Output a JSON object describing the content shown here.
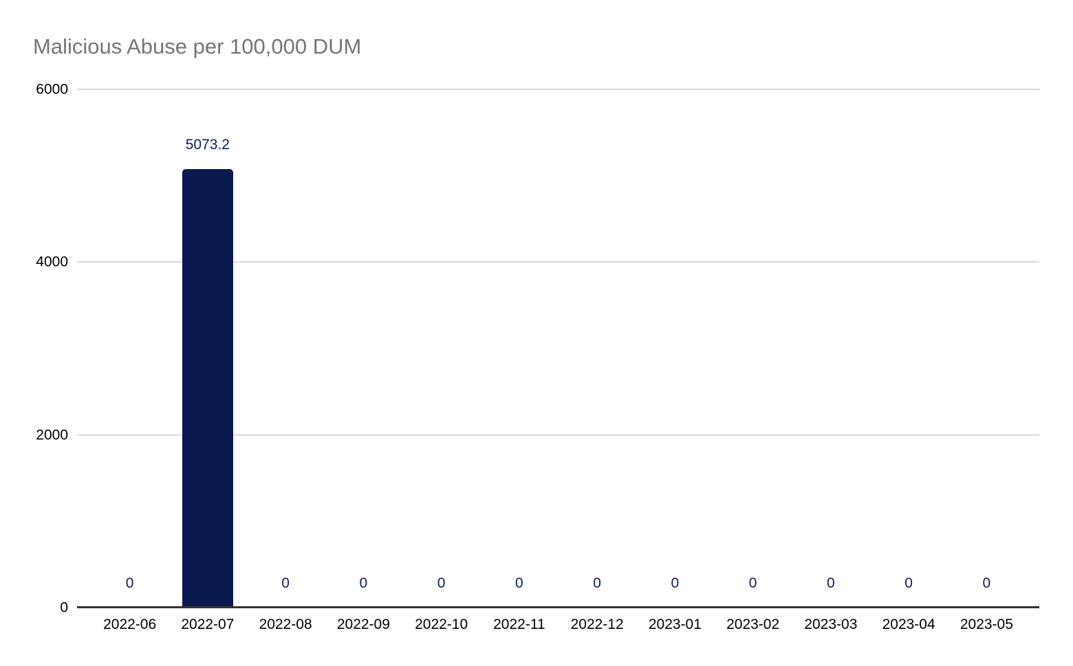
{
  "title": "Malicious Abuse per 100,000 DUM",
  "colors": {
    "background": "#ffffff",
    "bar": "#0a1a50",
    "value_label": "#0d1e5a",
    "gridline": "#d9d9d9",
    "axis_line": "#333333",
    "title_text": "#757575",
    "tick_text": "#000000"
  },
  "chart_data": {
    "type": "bar",
    "title": "Malicious Abuse per 100,000 DUM",
    "xlabel": "",
    "ylabel": "",
    "categories": [
      "2022-06",
      "2022-07",
      "2022-08",
      "2022-09",
      "2022-10",
      "2022-11",
      "2022-12",
      "2023-01",
      "2023-02",
      "2023-03",
      "2023-04",
      "2023-05"
    ],
    "values": [
      0,
      5073.2,
      0,
      0,
      0,
      0,
      0,
      0,
      0,
      0,
      0,
      0
    ],
    "value_labels": [
      "0",
      "5073.2",
      "0",
      "0",
      "0",
      "0",
      "0",
      "0",
      "0",
      "0",
      "0",
      "0"
    ],
    "ylim": [
      0,
      6000
    ],
    "yticks": [
      0,
      2000,
      4000,
      6000
    ],
    "ytick_labels": [
      "0",
      "2000",
      "4000",
      "6000"
    ],
    "grid": true,
    "legend_position": "none"
  }
}
